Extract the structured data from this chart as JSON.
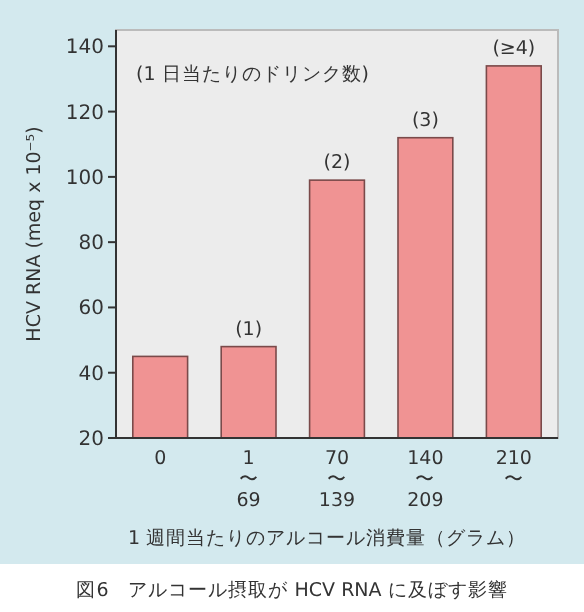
{
  "chart_data": {
    "type": "bar",
    "categories": [
      "0",
      "1\n〜\n69",
      "70\n〜\n139",
      "140\n〜\n209",
      "210\n〜"
    ],
    "values": [
      45,
      48,
      99,
      112,
      134
    ],
    "color": "#f09393",
    "ylabel": "HCV RNA (meq x 10⁻⁵)",
    "xlabel": "1 週間当たりのアルコール消費量（グラム）",
    "ylim": [
      20,
      145
    ],
    "yticks": [
      20,
      40,
      60,
      80,
      100,
      120,
      140
    ],
    "grid": false,
    "annotations": [
      {
        "text": "(1)",
        "x": "1\n〜\n69",
        "y": 48
      },
      {
        "text": "(2)",
        "x": "70\n〜\n139",
        "y": 99
      },
      {
        "text": "(3)",
        "x": "140\n〜\n209",
        "y": 112
      },
      {
        "text": "(≥4)",
        "x": "210\n〜",
        "y": 134
      },
      "(1 日当たりのドリンク数)",
      "図6　アルコール摂取が HCV RNA に及ぼす影響"
    ]
  }
}
